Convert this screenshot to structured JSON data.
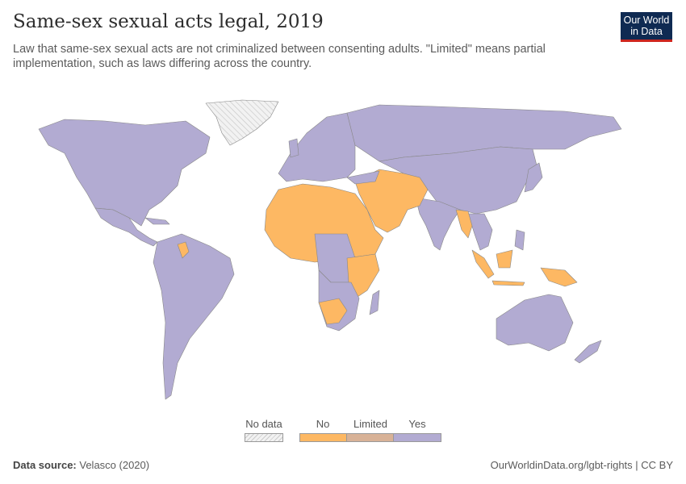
{
  "header": {
    "title": "Same-sex sexual acts legal, 2019",
    "subtitle": "Law that same-sex sexual acts are not criminalized between consenting adults. \"Limited\" means partial implementation, such as laws differing across the country.",
    "logo_text": "Our World in Data"
  },
  "legend": {
    "items": [
      {
        "label": "No data",
        "color": "hatched"
      },
      {
        "label": "No",
        "color": "#fdb863"
      },
      {
        "label": "Limited",
        "color": "#d8b297"
      },
      {
        "label": "Yes",
        "color": "#b2abd2"
      }
    ]
  },
  "colors": {
    "no": "#fdb863",
    "limited": "#d8b297",
    "yes": "#b2abd2",
    "border": "#888888",
    "logo_bg": "#0f2a52",
    "logo_accent": "#ce261e"
  },
  "footer": {
    "source_label": "Data source:",
    "source": "Velasco (2020)",
    "url": "OurWorldinData.org/lgbt-rights | CC BY"
  }
}
